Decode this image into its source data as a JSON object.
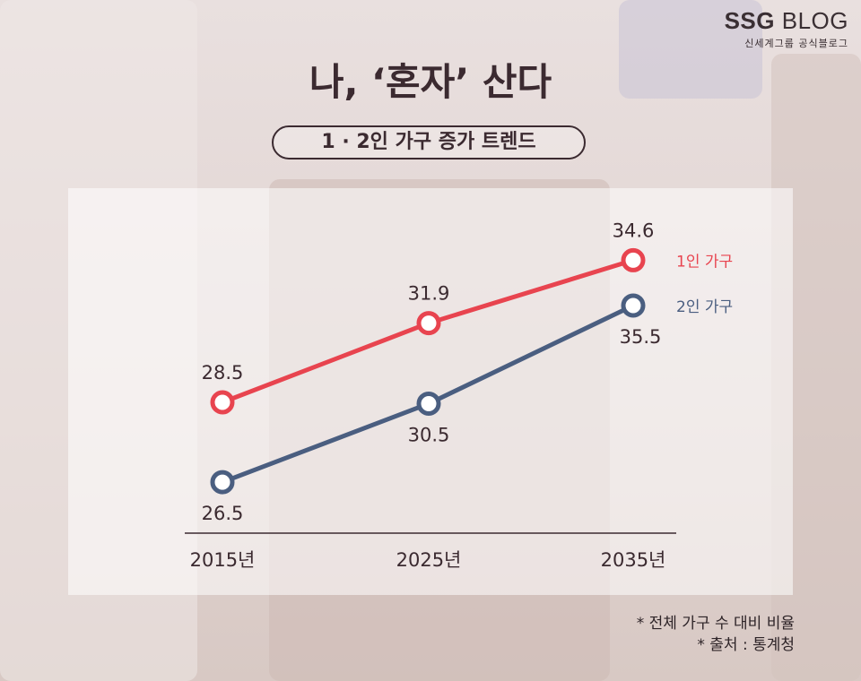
{
  "brand": {
    "name_bold": "SSG",
    "name_light": "BLOG",
    "tagline": "신세계그룹 공식블로그"
  },
  "title": "나, ‘혼자’ 산다",
  "subtitle": "1 · 2인 가구 증가 트렌드",
  "footnotes": [
    "* 전체 가구 수 대비 비율",
    "* 출처 : 통계청"
  ],
  "colors": {
    "one_person": "#e8444f",
    "two_person": "#4a5e80",
    "text": "#3b2a30"
  },
  "chart_data": {
    "type": "line",
    "title": "1 · 2인 가구 증가 트렌드",
    "categories": [
      "2015년",
      "2025년",
      "2035년"
    ],
    "series": [
      {
        "name": "1인 가구",
        "values": [
          28.5,
          31.9,
          34.6
        ],
        "color": "#e8444f"
      },
      {
        "name": "2인 가구",
        "values": [
          26.5,
          30.5,
          35.5
        ],
        "color": "#4a5e80"
      }
    ],
    "xlabel": "",
    "ylabel": "",
    "legend": "right",
    "grid": false
  }
}
